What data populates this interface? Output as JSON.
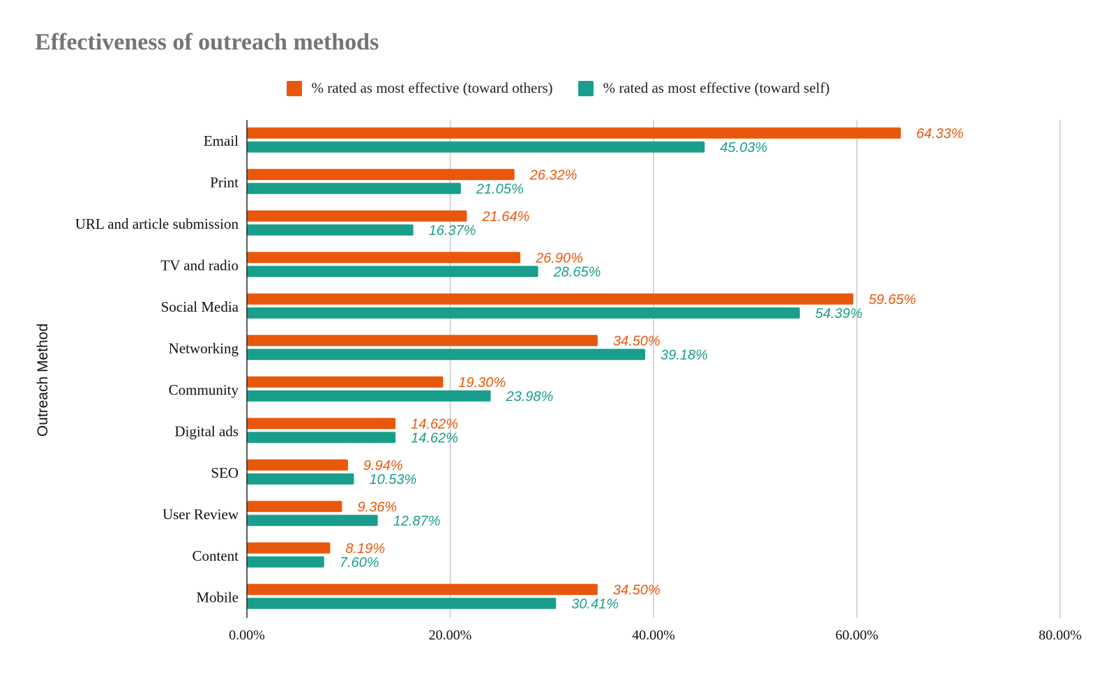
{
  "chart_data": {
    "type": "bar",
    "orientation": "horizontal",
    "title": "Effectiveness of outreach methods",
    "ylabel": "Outreach Method",
    "xlabel": "",
    "xlim": [
      0,
      80
    ],
    "x_ticks": [
      "0.00%",
      "20.00%",
      "40.00%",
      "60.00%",
      "80.00%"
    ],
    "x_tick_values": [
      0,
      20,
      40,
      60,
      80
    ],
    "grid": true,
    "legend_position": "top",
    "categories": [
      "Email",
      "Print",
      "URL and article submission",
      "TV and radio",
      "Social Media",
      "Networking",
      "Community",
      "Digital ads",
      "SEO",
      "User Review",
      "Content",
      "Mobile"
    ],
    "series": [
      {
        "name": "% rated as most effective (toward others)",
        "color": "#e8580c",
        "values": [
          64.33,
          26.32,
          21.64,
          26.9,
          59.65,
          34.5,
          19.3,
          14.62,
          9.94,
          9.36,
          8.19,
          34.5
        ],
        "labels": [
          "64.33%",
          "26.32%",
          "21.64%",
          "26.90%",
          "59.65%",
          "34.50%",
          "19.30%",
          "14.62%",
          "9.94%",
          "9.36%",
          "8.19%",
          "34.50%"
        ]
      },
      {
        "name": "% rated as most effective (toward self)",
        "color": "#1a9e8c",
        "values": [
          45.03,
          21.05,
          16.37,
          28.65,
          54.39,
          39.18,
          23.98,
          14.62,
          10.53,
          12.87,
          7.6,
          30.41
        ],
        "labels": [
          "45.03%",
          "21.05%",
          "16.37%",
          "28.65%",
          "54.39%",
          "39.18%",
          "23.98%",
          "14.62%",
          "10.53%",
          "12.87%",
          "7.60%",
          "30.41%"
        ]
      }
    ]
  }
}
